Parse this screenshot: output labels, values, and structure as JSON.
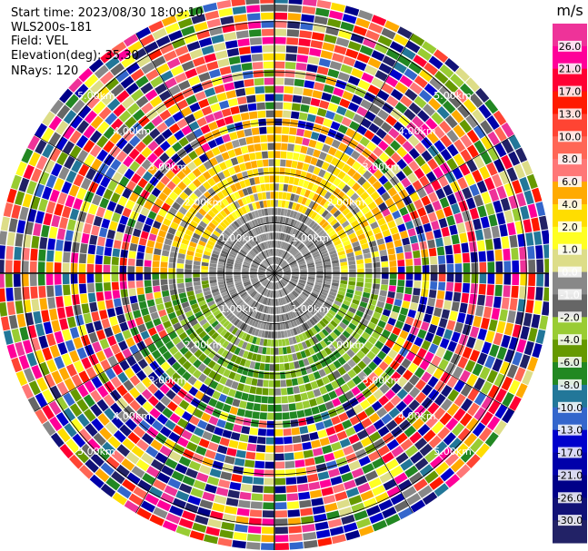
{
  "info": {
    "start_time": "Start time: 2023/08/30 18:09:10",
    "instrument": "WLS200s-181",
    "field": "Field: VEL",
    "elevation": "Elevation(deg): 35.30",
    "nrays": "NRays: 120"
  },
  "chart_data": {
    "type": "heatmap",
    "projection": "polar-ppi",
    "field": "VEL",
    "nrays": 120,
    "elevation_deg": 35.3,
    "range_rings_km": [
      1.0,
      2.0,
      3.0,
      4.0,
      5.0
    ],
    "range_ring_labels": [
      "1.00km",
      "2.00km",
      "3.00km",
      "4.00km",
      "5.00km"
    ],
    "colorbar": {
      "unit": "m/s",
      "tick_labels": [
        "26.0",
        "21.0",
        "17.0",
        "13.0",
        "10.0",
        "8.0",
        "6.0",
        "4.0",
        "2.0",
        "1.0",
        "0.0",
        "-1.0",
        "-2.0",
        "-4.0",
        "-6.0",
        "-8.0",
        "-10.0",
        "-13.0",
        "-17.0",
        "-21.0",
        "-26.0",
        "-30.0"
      ],
      "colors": [
        "#ee3399",
        "#ff0099",
        "#ff0033",
        "#ff1a00",
        "#ff4433",
        "#ff6655",
        "#ff7777",
        "#ffaa00",
        "#ffdd00",
        "#ffff22",
        "#dddd88",
        "#888888",
        "#666666",
        "#99cc33",
        "#669900",
        "#228822",
        "#227799",
        "#3366cc",
        "#0000cc",
        "#0000aa",
        "#000088",
        "#111177",
        "#222266"
      ]
    },
    "annotations": {
      "inner_region_velocity": "near 0.0 (gray)",
      "north_band": "positive, 2.0 to 6.0 (yellow-orange)",
      "south_band": "negative, -2.0 to -6.0 (green)",
      "outer_region": "noise (random colours)"
    }
  }
}
